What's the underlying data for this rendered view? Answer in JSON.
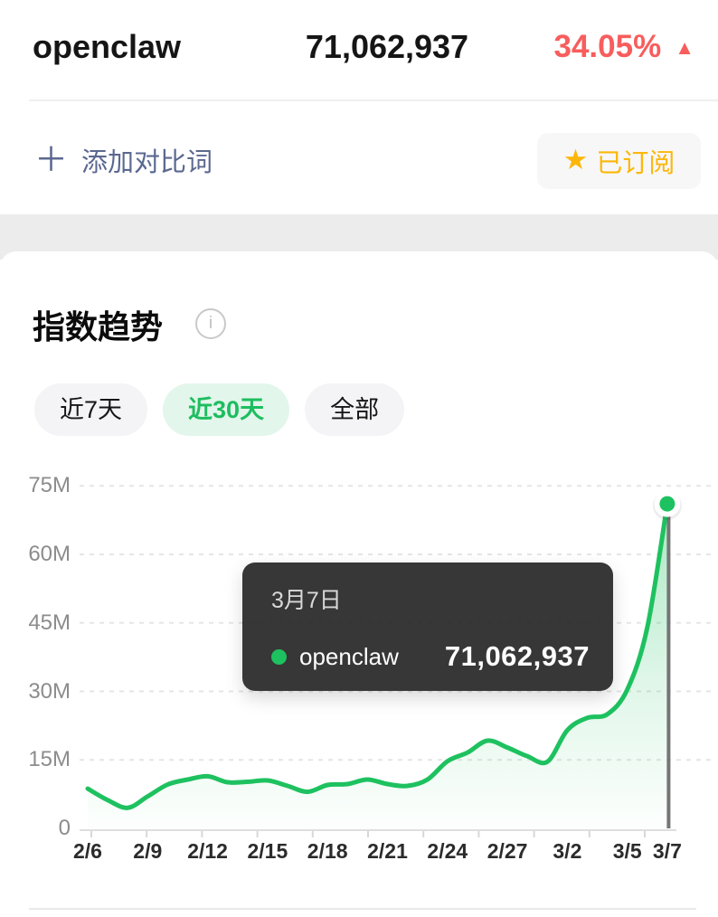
{
  "header": {
    "keyword": "openclaw",
    "index_value": "71,062,937",
    "change_pct": "34.05%",
    "up_arrow": "▲",
    "change_direction": "up"
  },
  "actions": {
    "plus_icon": "＋",
    "add_compare_label": "添加对比词",
    "star_icon": "★",
    "subscribed_label": "已订阅"
  },
  "trend_card": {
    "title": "指数趋势",
    "info_icon": "i",
    "tabs": [
      {
        "label": "近7天",
        "active": false
      },
      {
        "label": "近30天",
        "active": true
      },
      {
        "label": "全部",
        "active": false
      }
    ]
  },
  "tooltip": {
    "date": "3月7日",
    "series_name": "openclaw",
    "value": "71,062,937"
  },
  "colors": {
    "line_green": "#1ec15f",
    "tab_active_green": "#1dbd5f",
    "tab_active_bg": "#e3f6eb",
    "up_red": "#f85d5d",
    "link_blue": "#5b6890",
    "star_yellow": "#fcb70a",
    "tooltip_bg": "rgba(40,40,40,0.93)",
    "grid_gray": "#e5e5e5",
    "indicator_gray": "#757575"
  },
  "chart_data": {
    "type": "line",
    "title": "指数趋势",
    "smooth": true,
    "area_fill": true,
    "grid": "horizontal-dashed",
    "ylim": [
      0,
      75000000
    ],
    "y_tick_labels": [
      "0",
      "15M",
      "30M",
      "45M",
      "60M",
      "75M"
    ],
    "y_tick_step": 15000000,
    "x": [
      "2/6",
      "2/7",
      "2/8",
      "2/9",
      "2/10",
      "2/11",
      "2/12",
      "2/13",
      "2/14",
      "2/15",
      "2/16",
      "2/17",
      "2/18",
      "2/19",
      "2/20",
      "2/21",
      "2/22",
      "2/23",
      "2/24",
      "2/25",
      "2/26",
      "2/27",
      "2/28",
      "3/1",
      "3/2",
      "3/3",
      "3/4",
      "3/5",
      "3/6",
      "3/7"
    ],
    "x_tick_indices": [
      0,
      3,
      6,
      9,
      12,
      15,
      18,
      21,
      24,
      27,
      29
    ],
    "series": [
      {
        "name": "openclaw",
        "color": "#1ec15f",
        "values": [
          8700000,
          6200000,
          4500000,
          7000000,
          9600000,
          10700000,
          11400000,
          10100000,
          10200000,
          10500000,
          9300000,
          8000000,
          9500000,
          9700000,
          10700000,
          9700000,
          9300000,
          10700000,
          14700000,
          16600000,
          19200000,
          17700000,
          15800000,
          14600000,
          21500000,
          24200000,
          25000000,
          30400000,
          44000000,
          71062937
        ]
      }
    ],
    "highlight": {
      "index": 29,
      "x_label": "3/7",
      "date": "3月7日",
      "value": 71062937
    }
  }
}
